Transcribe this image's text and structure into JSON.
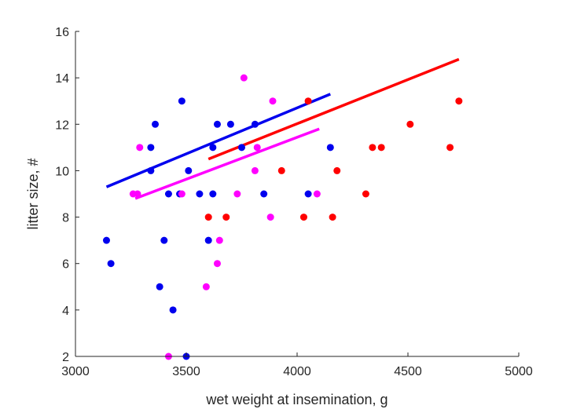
{
  "chart_data": {
    "type": "scatter",
    "xlabel": "wet weight at insemination, g",
    "ylabel": "litter size, #",
    "xlim": [
      3000,
      5000
    ],
    "ylim": [
      2,
      16
    ],
    "xticks": [
      3000,
      3500,
      4000,
      4500,
      5000
    ],
    "yticks": [
      2,
      4,
      6,
      8,
      10,
      12,
      14,
      16
    ],
    "x_tick_labels": [
      "3000",
      "3500",
      "4000",
      "4500",
      "5000"
    ],
    "y_tick_labels": [
      "2",
      "4",
      "6",
      "8",
      "10",
      "12",
      "14",
      "16"
    ],
    "grid": false,
    "legend": "none",
    "series": [
      {
        "color": "#0000ee",
        "points": [
          [
            3140,
            7
          ],
          [
            3160,
            6
          ],
          [
            3340,
            11
          ],
          [
            3340,
            10
          ],
          [
            3360,
            12
          ],
          [
            3380,
            5
          ],
          [
            3400,
            7
          ],
          [
            3420,
            9
          ],
          [
            3440,
            4
          ],
          [
            3470,
            9
          ],
          [
            3480,
            13
          ],
          [
            3500,
            2
          ],
          [
            3510,
            10
          ],
          [
            3560,
            9
          ],
          [
            3600,
            7
          ],
          [
            3620,
            9
          ],
          [
            3620,
            11
          ],
          [
            3640,
            12
          ],
          [
            3700,
            12
          ],
          [
            3750,
            11
          ],
          [
            3810,
            12
          ],
          [
            3850,
            9
          ],
          [
            4050,
            9
          ],
          [
            4150,
            11
          ]
        ],
        "fit": [
          [
            3140,
            9.3
          ],
          [
            4150,
            13.3
          ]
        ]
      },
      {
        "color": "#ff00ff",
        "points": [
          [
            3260,
            9
          ],
          [
            3280,
            9
          ],
          [
            3290,
            11
          ],
          [
            3420,
            2
          ],
          [
            3480,
            9
          ],
          [
            3590,
            5
          ],
          [
            3640,
            6
          ],
          [
            3650,
            7
          ],
          [
            3730,
            9
          ],
          [
            3760,
            14
          ],
          [
            3810,
            10
          ],
          [
            3820,
            11
          ],
          [
            3880,
            8
          ],
          [
            3890,
            13
          ],
          [
            4090,
            9
          ]
        ],
        "fit": [
          [
            3270,
            8.8
          ],
          [
            4100,
            11.8
          ]
        ]
      },
      {
        "color": "#ff0000",
        "points": [
          [
            3600,
            8
          ],
          [
            3680,
            8
          ],
          [
            3930,
            10
          ],
          [
            4030,
            8
          ],
          [
            4050,
            13
          ],
          [
            4160,
            8
          ],
          [
            4180,
            10
          ],
          [
            4310,
            9
          ],
          [
            4340,
            11
          ],
          [
            4380,
            11
          ],
          [
            4510,
            12
          ],
          [
            4690,
            11
          ],
          [
            4730,
            13
          ]
        ],
        "fit": [
          [
            3600,
            10.5
          ],
          [
            4730,
            14.8
          ]
        ]
      }
    ]
  }
}
